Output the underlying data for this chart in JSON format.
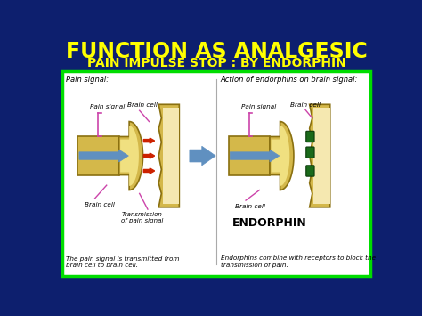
{
  "title1": "FUNCTION AS ANALGESIC",
  "title2": "PAIN IMPULSE STOP : BY ENDORPHIN",
  "title1_color": "#FFFF00",
  "title2_color": "#FFFF00",
  "bg_color": "#0d1f6e",
  "box_bg": "#ffffff",
  "box_border": "#00dd00",
  "left_panel_title": "Pain signal:",
  "right_panel_title": "Action of endorphins on brain signal:",
  "left_caption": "The pain signal is transmitted from\nbrain cell to brain cell.",
  "right_caption": "Endorphins combine with receptors to block the\ntransmission of pain.",
  "endorphin_label": "ENDORPHIN",
  "cell_fill": "#d4b84a",
  "cell_inner": "#f0e080",
  "cell_outline": "#8a7010",
  "synapse_gap": "#ffffff",
  "arrow_blue": "#6090c0",
  "arrow_blue_light": "#90b8e0",
  "arrow_red": "#cc2200",
  "receptor_color": "#1a6a1a",
  "receptor_dark": "#0a3a0a",
  "label_color": "#000000",
  "pain_signal_color": "#cc44aa",
  "right_bg": "#f5e8b0",
  "figsize": [
    4.74,
    3.55
  ],
  "dpi": 100
}
